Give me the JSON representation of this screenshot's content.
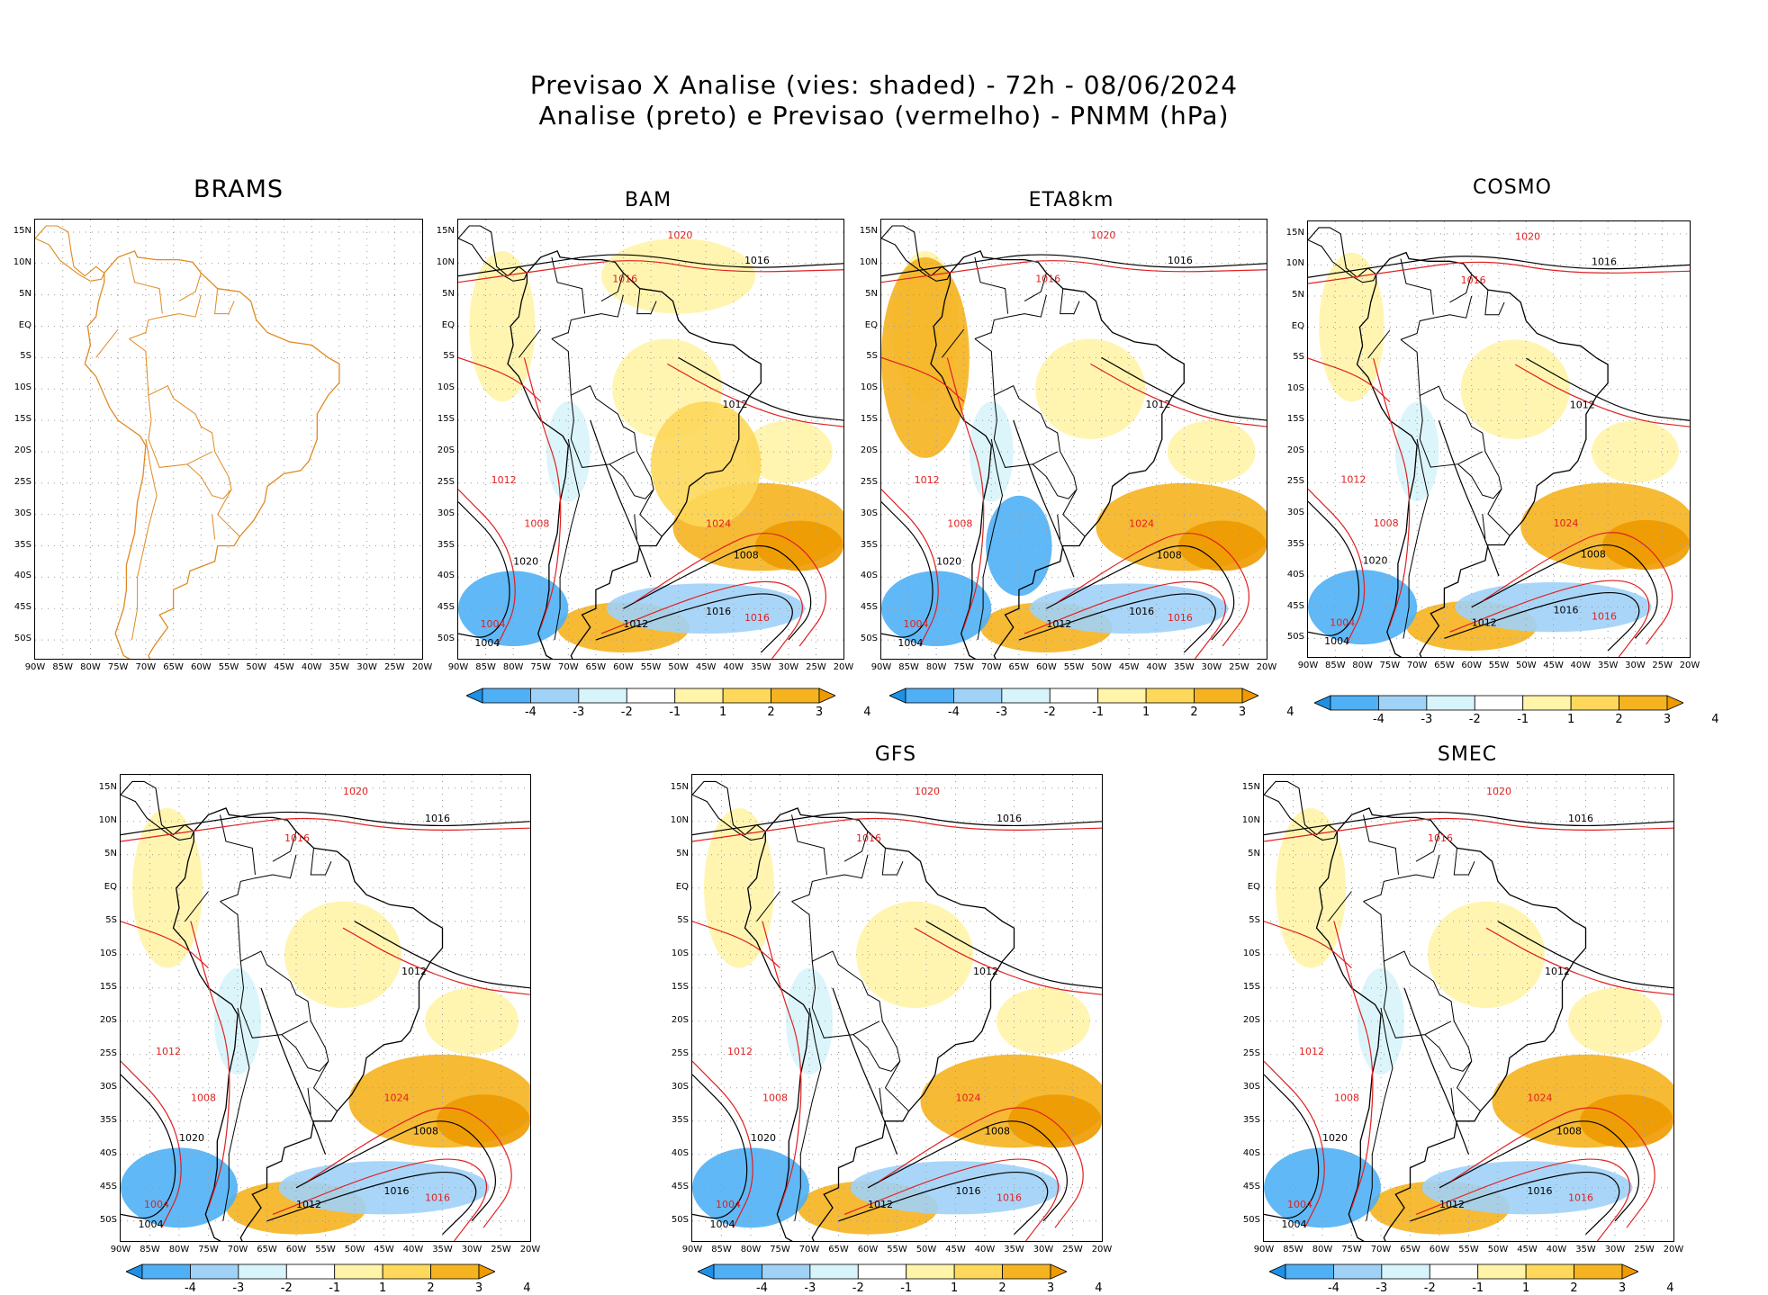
{
  "title": {
    "line1": "Previsao X Analise (vies: shaded) - 72h - 08/06/2024",
    "line2": "Analise (preto) e Previsao (vermelho) - PNMM (hPa)"
  },
  "axes": {
    "lat_labels": [
      "15N",
      "10N",
      "5N",
      "EQ",
      "5S",
      "10S",
      "15S",
      "20S",
      "25S",
      "30S",
      "35S",
      "40S",
      "45S",
      "50S"
    ],
    "lon_labels": [
      "90W",
      "85W",
      "80W",
      "75W",
      "70W",
      "65W",
      "60W",
      "55W",
      "50W",
      "45W",
      "40W",
      "35W",
      "30W",
      "25W",
      "20W"
    ]
  },
  "colorbar": {
    "labels": [
      "-4",
      "-3",
      "-2",
      "-1",
      "1",
      "2",
      "3",
      "4"
    ],
    "colors": [
      "#1e90e6",
      "#4fb0f5",
      "#a0d2f7",
      "#d8f4fb",
      "#ffffff",
      "#fff4a8",
      "#fdd85a",
      "#f5b31f",
      "#ee9a00"
    ]
  },
  "panels": [
    {
      "name": "BRAMS",
      "shaded": false
    },
    {
      "name": "BAM",
      "shaded": true
    },
    {
      "name": "ETA8km",
      "shaded": true
    },
    {
      "name": "COSMO",
      "shaded": true
    },
    {
      "name": "",
      "shaded": true
    },
    {
      "name": "GFS",
      "shaded": true
    },
    {
      "name": "SMEC",
      "shaded": true
    }
  ],
  "isobar_labels": {
    "black": [
      "1016",
      "1012",
      "1020",
      "1008",
      "1016",
      "1012",
      "1004"
    ],
    "red": [
      "1020",
      "1016",
      "1012",
      "1024",
      "1008",
      "1016",
      "1004"
    ]
  },
  "colors": {
    "coast_brams": "#e08a20",
    "coast": "#000000",
    "analysis": "#000000",
    "forecast": "#e02020"
  }
}
